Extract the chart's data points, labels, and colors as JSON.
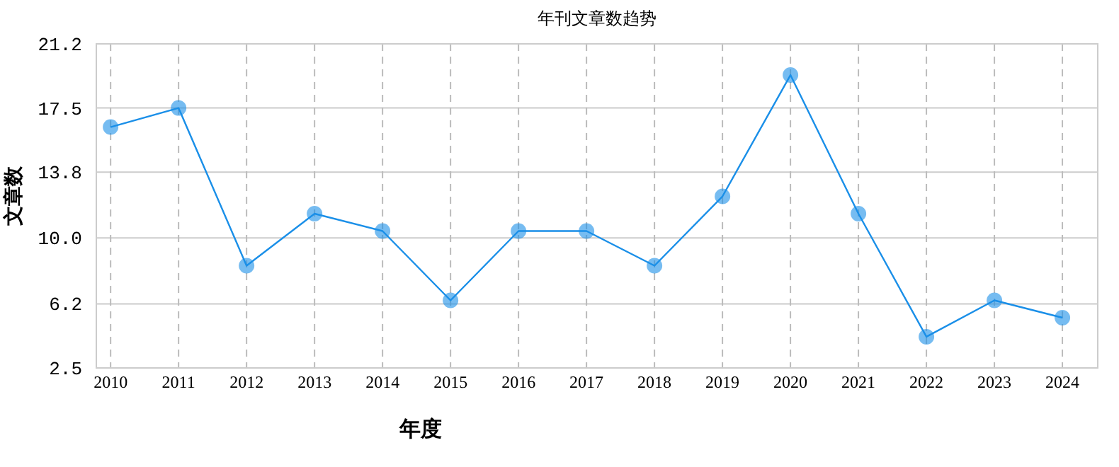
{
  "chart_data": {
    "type": "line",
    "title": "年刊文章数趋势",
    "xlabel": "年度",
    "ylabel": "文章数",
    "categories": [
      "2010",
      "2011",
      "2012",
      "2013",
      "2014",
      "2015",
      "2016",
      "2017",
      "2018",
      "2019",
      "2020",
      "2021",
      "2022",
      "2023",
      "2024"
    ],
    "series": [
      {
        "color": "#1a8fe8",
        "values": [
          16.4,
          17.5,
          8.4,
          11.4,
          10.4,
          6.4,
          10.4,
          10.4,
          8.4,
          12.4,
          19.4,
          11.4,
          4.3,
          6.4,
          5.4
        ]
      }
    ],
    "ylim": [
      2.5,
      21.2
    ],
    "yticks": [
      2.5,
      6.2,
      {
        "value": 10,
        "label": "10.0"
      },
      13.8,
      17.5,
      21.2
    ],
    "grid": true,
    "marker": "circle",
    "line_style": "solid"
  }
}
